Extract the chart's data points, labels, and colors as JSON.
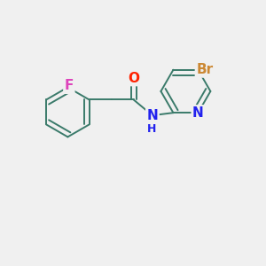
{
  "background_color": "#f0f0f0",
  "bond_color": "#3a7a6a",
  "atom_colors": {
    "F": "#dd44bb",
    "O": "#ff2200",
    "N": "#2222ee",
    "H": "#2222ee",
    "Br": "#cc8833"
  },
  "line_width": 1.4,
  "figsize": [
    3.0,
    3.0
  ],
  "dpi": 100
}
